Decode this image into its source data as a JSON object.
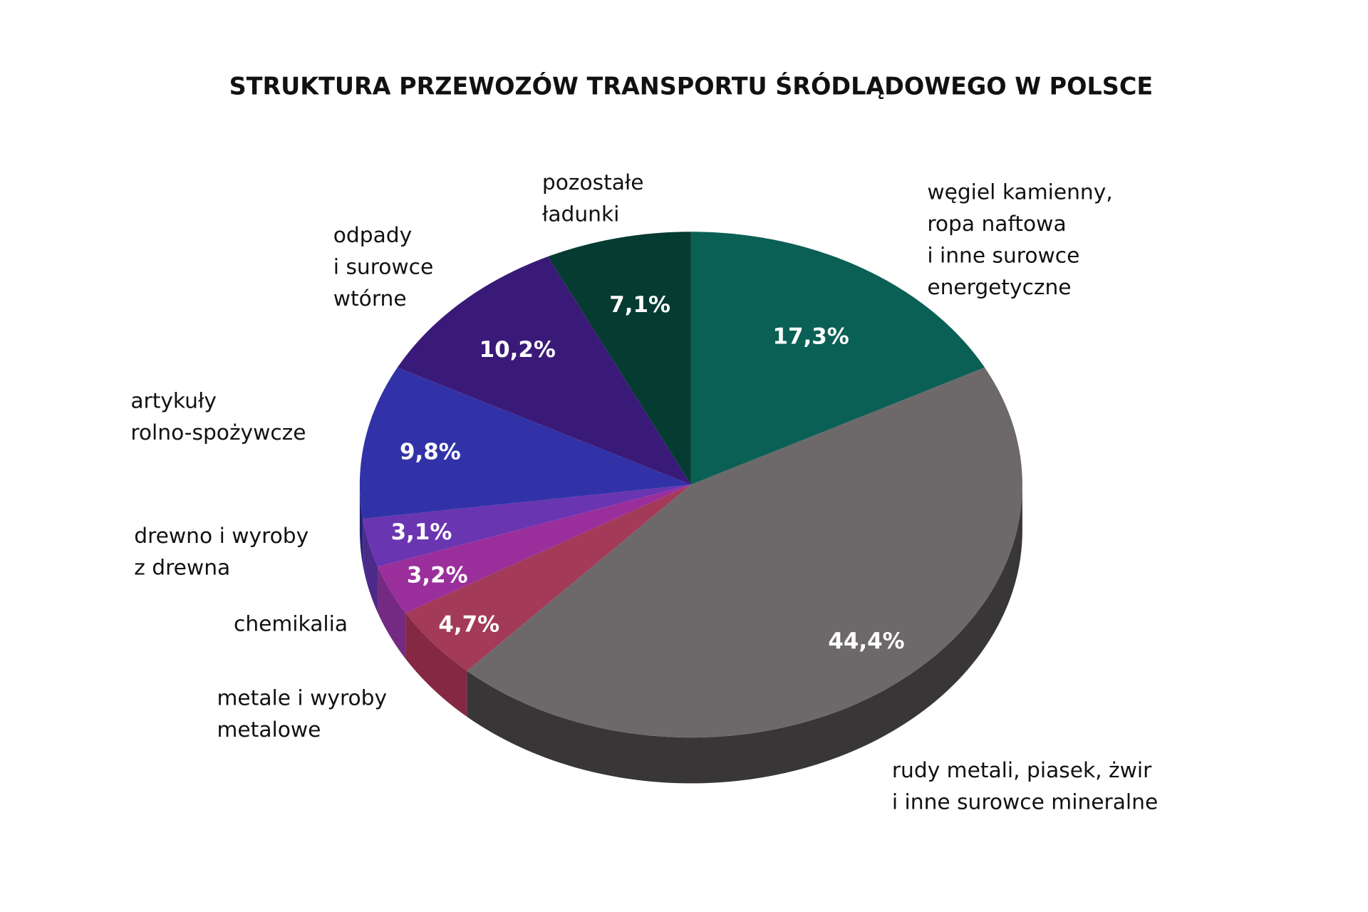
{
  "chart_data": {
    "type": "pie",
    "title": "STRUKTURA PRZEWOZÓW TRANSPORTU ŚRÓDLĄDOWEGO W POLSCE",
    "start": "top",
    "direction": "clockwise",
    "slices": [
      {
        "name": "węgiel kamienny, ropa naftowa i inne surowce energetyczne",
        "label_lines": [
          "węgiel kamienny,",
          "ropa naftowa",
          "i inne surowce",
          "energetyczne"
        ],
        "value": 17.3,
        "value_label": "17,3%",
        "color": "#0b6055",
        "side_color": "#063d36"
      },
      {
        "name": "rudy metali, piasek, żwir i inne surowce mineralne",
        "label_lines": [
          "rudy metali, piasek, żwir",
          "i inne surowce mineralne"
        ],
        "value": 44.4,
        "value_label": "44,4%",
        "color": "#6d696a",
        "side_color": "#383637"
      },
      {
        "name": "metale i wyroby metalowe",
        "label_lines": [
          "metale i wyroby",
          "metalowe"
        ],
        "value": 4.7,
        "value_label": "4,7%",
        "color": "#a33a58",
        "side_color": "#842843"
      },
      {
        "name": "chemikalia",
        "label_lines": [
          "chemikalia"
        ],
        "value": 3.2,
        "value_label": "3,2%",
        "color": "#9a2f9c",
        "side_color": "#742a80"
      },
      {
        "name": "drewno i wyroby z drewna",
        "label_lines": [
          "drewno i wyroby",
          "z drewna"
        ],
        "value": 3.1,
        "value_label": "3,1%",
        "color": "#6a35b0",
        "side_color": "#4c2a8a"
      },
      {
        "name": "artykuły rolno-spożywcze",
        "label_lines": [
          "artykuły",
          "rolno-spożywcze"
        ],
        "value": 9.8,
        "value_label": "9,8%",
        "color": "#3232a8",
        "side_color": "#24247a"
      },
      {
        "name": "odpady i surowce wtórne",
        "label_lines": [
          "odpady",
          "i surowce",
          "wtórne"
        ],
        "value": 10.2,
        "value_label": "10,2%",
        "color": "#3a1a78",
        "side_color": "#2a1258"
      },
      {
        "name": "pozostałe ładunki",
        "label_lines": [
          "pozostałe",
          "ładunki"
        ],
        "value": 7.1,
        "value_label": "7,1%",
        "color": "#063b32",
        "side_color": "#042a24"
      }
    ]
  }
}
